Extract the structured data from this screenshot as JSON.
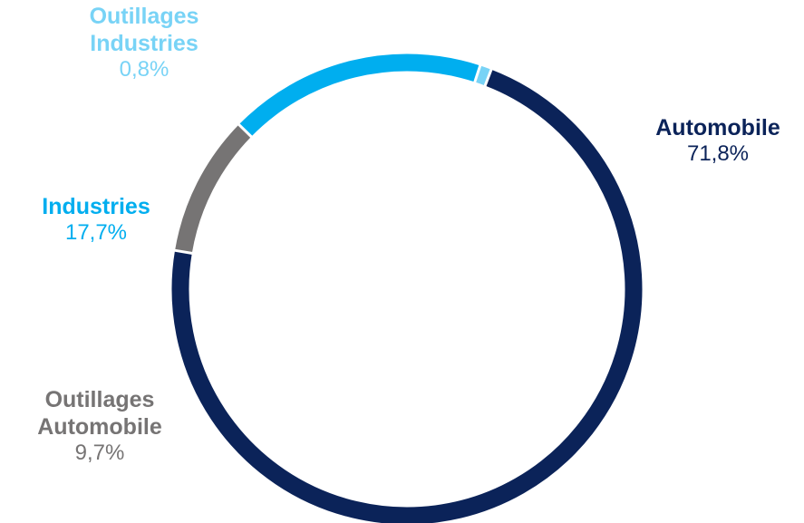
{
  "chart_data": {
    "type": "pie",
    "style": "donut",
    "categories": [
      "Automobile",
      "Outillages Automobile",
      "Industries",
      "Outillages Industries"
    ],
    "values": [
      71.8,
      9.7,
      17.7,
      0.8
    ],
    "value_labels": [
      "71,8%",
      "9,7%",
      "17,7%",
      "0,8%"
    ],
    "label_lines": [
      [
        "Automobile"
      ],
      [
        "Outillages",
        "Automobile"
      ],
      [
        "Industries"
      ],
      [
        "Outillages",
        "Industries"
      ]
    ],
    "colors": [
      "#0b2359",
      "#767474",
      "#00aeef",
      "#78d3f6"
    ],
    "start_angle_deg": 21,
    "direction": "clockwise",
    "legend": "none",
    "grid": false
  }
}
